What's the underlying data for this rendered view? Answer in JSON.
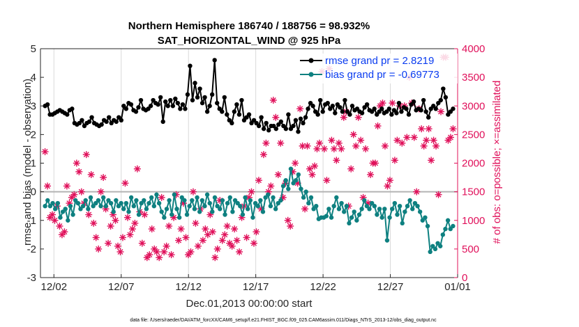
{
  "chart_data": {
    "type": "line",
    "title": "Northern Hemisphere 186740 / 188756 = 98.932%",
    "subtitle": "SAT_HORIZONTAL_WIND @ 925 hPa",
    "xlabel": "Dec.01,2013 00:00:00 start",
    "ylabel": "rmse and bias (model - observation)",
    "y2label": "# of obs: o=possible; ×=assimilated",
    "footer": "data file: /Users/raeder/DAI/ATM_forcXX/CAM6_setup/f.e21.FHIST_BGC.f09_025.CAM6assim.011/Diags_NTrS_2013-12/obs_diag_output.nc",
    "xlim": [
      0.5,
      31.5
    ],
    "ylim": [
      -3,
      5
    ],
    "y2lim": [
      0,
      4000
    ],
    "x_ticks": [
      {
        "x": 1.5,
        "label": "12/02"
      },
      {
        "x": 6.5,
        "label": "12/07"
      },
      {
        "x": 11.5,
        "label": "12/12"
      },
      {
        "x": 16.5,
        "label": "12/17"
      },
      {
        "x": 21.5,
        "label": "12/22"
      },
      {
        "x": 26.5,
        "label": "12/27"
      },
      {
        "x": 31.5,
        "label": "01/01"
      }
    ],
    "y_ticks": [
      "-3",
      "-2",
      "-1",
      "0",
      "1",
      "2",
      "3",
      "4",
      "5"
    ],
    "y2_ticks": [
      "0",
      "500",
      "1000",
      "1500",
      "2000",
      "2500",
      "3000",
      "3500",
      "4000"
    ],
    "legend": [
      {
        "label": "rmse grand pr = 2.8219",
        "color": "#000000"
      },
      {
        "label": "bias grand pr = -0.69773",
        "color": "#0e8080"
      }
    ],
    "rmse": [
      3.0,
      3.05,
      2.7,
      2.7,
      2.75,
      2.8,
      2.85,
      2.8,
      2.75,
      2.7,
      2.85,
      2.9,
      2.4,
      2.35,
      2.4,
      2.5,
      2.3,
      2.4,
      2.45,
      2.6,
      2.4,
      2.35,
      2.3,
      2.35,
      2.5,
      2.45,
      2.6,
      2.4,
      2.5,
      2.45,
      2.6,
      2.5,
      3.0,
      2.9,
      3.1,
      3.05,
      2.85,
      2.8,
      2.95,
      3.2,
      2.9,
      2.85,
      2.9,
      3.0,
      3.2,
      3.1,
      3.05,
      3.3,
      2.45,
      3.15,
      3.0,
      3.2,
      3.0,
      3.25,
      3.1,
      2.9,
      3.05,
      2.9,
      3.4,
      4.4,
      3.2,
      3.8,
      3.3,
      3.6,
      3.1,
      3.3,
      2.8,
      3.0,
      3.4,
      4.6,
      3.1,
      2.9,
      2.8,
      3.3,
      2.7,
      2.5,
      2.4,
      2.8,
      3.05,
      2.7,
      3.2,
      2.5,
      2.6,
      2.7,
      2.4,
      2.5,
      2.4,
      2.3,
      2.6,
      2.2,
      2.4,
      2.15,
      2.3,
      2.3,
      2.2,
      2.35,
      2.45,
      2.3,
      2.2,
      2.7,
      2.2,
      2.3,
      2.5,
      2.1,
      2.55,
      2.4,
      2.6,
      2.9,
      3.1,
      3.0,
      2.8,
      2.7,
      3.2,
      2.8,
      3.05,
      3.1,
      2.9,
      3.0,
      2.75,
      3.05,
      2.95,
      2.8,
      3.2,
      2.8,
      2.7,
      3.0,
      2.85,
      2.9,
      2.8,
      2.75,
      2.95,
      3.05,
      2.85,
      2.8,
      2.9,
      2.7,
      2.8,
      2.9,
      2.75,
      2.8,
      2.9,
      2.7,
      2.85,
      2.75,
      3.1,
      2.8,
      2.95,
      2.9,
      2.7,
      3.05,
      3.15,
      2.85,
      2.9,
      2.85,
      3.2,
      2.8,
      2.6,
      2.9,
      3.0,
      2.9,
      3.1,
      3.2,
      3.6,
      3.3,
      2.7,
      2.8,
      2.9
    ],
    "bias": [
      -0.5,
      -0.3,
      -0.5,
      -0.4,
      -0.6,
      -0.4,
      -0.9,
      -0.7,
      -0.6,
      -1.0,
      -0.5,
      -0.8,
      -0.3,
      -0.4,
      -0.6,
      -0.5,
      -0.3,
      -0.6,
      -0.2,
      -0.5,
      -0.4,
      -0.3,
      -0.5,
      -0.2,
      -0.5,
      -0.3,
      -0.4,
      -0.7,
      -0.3,
      -0.5,
      -0.4,
      -0.6,
      -0.4,
      -0.7,
      -0.2,
      -0.5,
      -0.3,
      -0.8,
      -0.4,
      -0.3,
      -0.6,
      -0.4,
      -0.2,
      -0.5,
      -0.1,
      -0.4,
      -0.7,
      -0.9,
      -0.6,
      -0.3,
      -0.8,
      -0.1,
      -0.6,
      -0.9,
      -0.2,
      -0.3,
      -0.8,
      -0.5,
      -0.3,
      -0.6,
      -0.2,
      -0.7,
      -0.3,
      -0.5,
      -0.1,
      -0.4,
      -0.7,
      -0.2,
      -0.5,
      -0.6,
      -0.3,
      -0.8,
      -0.4,
      -0.2,
      -0.7,
      -0.3,
      -0.4,
      -0.5,
      -0.8,
      -0.2,
      -0.6,
      -0.3,
      -0.9,
      -0.4,
      -0.5,
      -0.3,
      -0.7,
      -0.2,
      -0.1,
      -0.5,
      -0.2,
      -0.6,
      -0.4,
      -0.3,
      0.2,
      0.4,
      0.1,
      0.8,
      0.3,
      0.4,
      0.6,
      0.1,
      -0.2,
      0.0,
      -0.4,
      -0.2,
      -0.6,
      -0.5,
      -0.95,
      -0.9,
      -0.9,
      -0.85,
      -0.6,
      -0.9,
      -0.5,
      -0.2,
      -0.6,
      -0.4,
      -0.7,
      -0.5,
      -1.1,
      -0.9,
      -0.7,
      -1.0,
      -0.8,
      -0.6,
      -0.3,
      -0.5,
      -0.6,
      -0.4,
      -0.5,
      -0.8,
      -0.6,
      -0.9,
      -0.6,
      -1.7,
      -0.9,
      -0.6,
      -0.4,
      -0.8,
      -0.5,
      -1.1,
      -0.7,
      -0.5,
      -0.3,
      -0.6,
      -0.4,
      -0.5,
      -0.7,
      -1.0,
      -0.9,
      -1.2,
      -2.1,
      -1.9,
      -2.0,
      -1.8,
      -1.9,
      -1.5,
      -1.3,
      -1.0,
      -1.3,
      -1.2
    ],
    "obs_assimilated": [
      2200,
      1600,
      1050,
      1100,
      1000,
      1250,
      900,
      750,
      800,
      1600,
      1300,
      1400,
      1450,
      2000,
      1850,
      1500,
      1300,
      2150,
      1100,
      1800,
      950,
      700,
      500,
      1500,
      1750,
      1200,
      600,
      900,
      1100,
      1000,
      550,
      450,
      700,
      1650,
      1050,
      750,
      850,
      950,
      1900,
      1150,
      600,
      1100,
      350,
      400,
      850,
      500,
      450,
      350,
      1400,
      450,
      550,
      900,
      400,
      1050,
      1450,
      650,
      850,
      1300,
      700,
      400,
      450,
      1500,
      950,
      550,
      1200,
      650,
      850,
      750,
      1100,
      800,
      350,
      500,
      1350,
      650,
      750,
      900,
      600,
      550,
      850,
      650,
      450,
      1050,
      1250,
      700,
      1400,
      1500,
      600,
      800,
      1700,
      1200,
      2150,
      2350,
      1500,
      1600,
      3100,
      2800,
      1800,
      2350,
      1400,
      1650,
      1000,
      900,
      1850,
      2000,
      1650,
      2950,
      2300,
      1200,
      2300,
      1900,
      1800,
      1950,
      2250,
      2350,
      3600,
      2250,
      1700,
      3650,
      2400,
      2250,
      2050,
      2350,
      2250,
      2800,
      2900,
      1250,
      1900,
      2500,
      2300,
      2800,
      2400,
      1400,
      2250,
      1300,
      1800,
      2000,
      2000,
      2650,
      3000,
      3050,
      2300,
      1600,
      1700,
      3050,
      2050,
      2400,
      3000,
      2350,
      3000,
      2450,
      3500,
      3050,
      2450,
      1500,
      2950,
      2600,
      2300,
      2400,
      2600,
      2050,
      2400,
      2300,
      1450,
      2900,
      3850,
      3850,
      2400,
      2450,
      2600
    ],
    "obs_possible": []
  }
}
